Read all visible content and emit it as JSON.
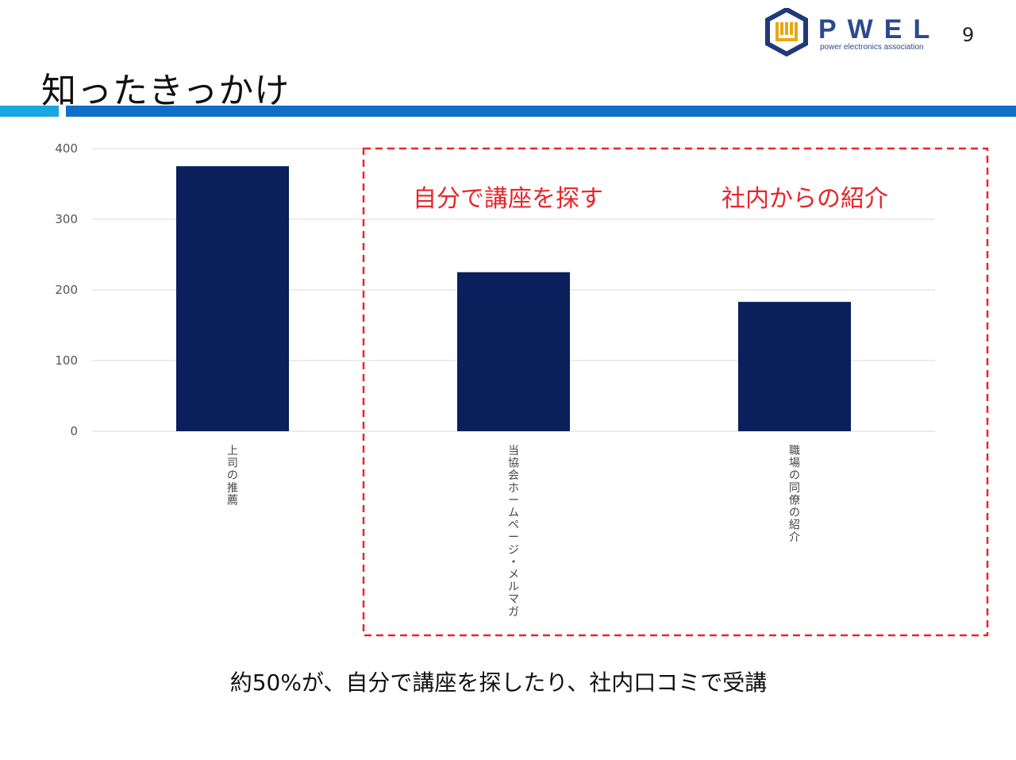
{
  "slide": {
    "page_number": "9",
    "title": "知ったきっかけ",
    "summary": "約50%が、自分で講座を探したり、社内口コミで受講"
  },
  "logo": {
    "letters": "PWEL",
    "tagline": "power electronics association",
    "colors": {
      "navy": "#1f3a78",
      "gold": "#e6a817",
      "letters": "#2b4a8f"
    }
  },
  "colors": {
    "bar": "#0a1f5c",
    "grid": "#d9d9d9",
    "highlight": "#e8262a",
    "rule_light": "#1aa6e0",
    "rule_dark": "#0f6fc6"
  },
  "highlight": {
    "box_style": "dashed",
    "labels": [
      "自分で講座を探す",
      "社内からの紹介"
    ]
  },
  "chart_data": {
    "type": "bar",
    "categories": [
      "上司の推薦",
      "当協会ホームページ・メルマガ",
      "職場の同僚の紹介"
    ],
    "values": [
      375,
      225,
      183
    ],
    "ylim": [
      0,
      400
    ],
    "yticks": [
      0,
      100,
      200,
      300,
      400
    ],
    "title": "",
    "xlabel": "",
    "ylabel": "",
    "grid": true,
    "legend": "none",
    "category_label_orientation": "vertical"
  }
}
